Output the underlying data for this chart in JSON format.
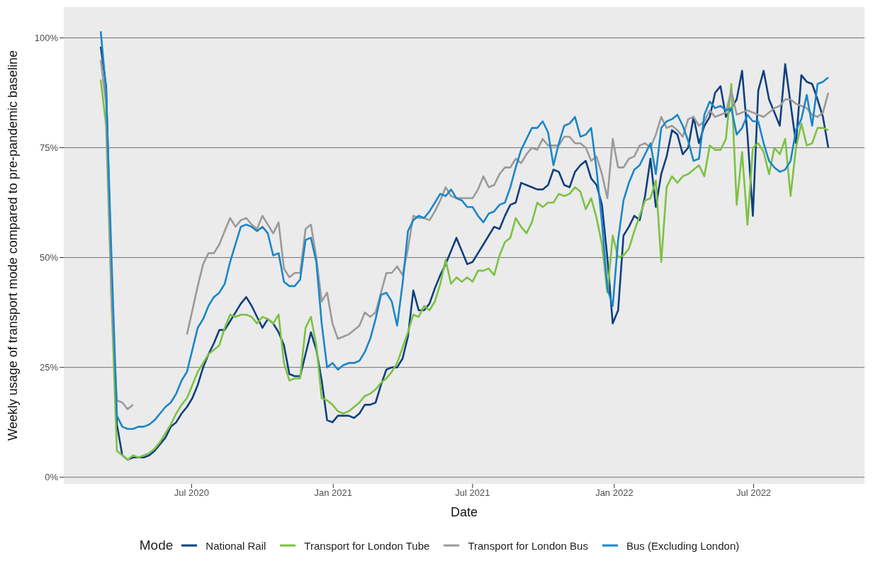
{
  "chart_data": {
    "type": "line",
    "xlabel": "Date",
    "ylabel": "Weekly usage of transport mode compared to pre-pandemic baseline",
    "legend_title": "Mode",
    "legend": "bottom",
    "grid": "y",
    "xlim": [
      "2020-01-17",
      "2022-11-22"
    ],
    "xticks": [
      {
        "value": "2020-07-01",
        "label": "Jul 2020"
      },
      {
        "value": "2021-01-01",
        "label": "Jan 2021"
      },
      {
        "value": "2021-07-01",
        "label": "Jul 2021"
      },
      {
        "value": "2022-01-01",
        "label": "Jan 2022"
      },
      {
        "value": "2022-07-01",
        "label": "Jul 2022"
      }
    ],
    "ylim": [
      -1.5,
      107
    ],
    "yticks": [
      {
        "value": 0,
        "label": "0%"
      },
      {
        "value": 25,
        "label": "25%"
      },
      {
        "value": 50,
        "label": "50%"
      },
      {
        "value": 75,
        "label": "75%"
      },
      {
        "value": 100,
        "label": "100%"
      }
    ],
    "x": [
      "2020-03-05",
      "2020-03-12",
      "2020-03-19",
      "2020-03-26",
      "2020-04-02",
      "2020-04-09",
      "2020-04-16",
      "2020-04-23",
      "2020-04-30",
      "2020-05-07",
      "2020-05-14",
      "2020-05-21",
      "2020-05-28",
      "2020-06-04",
      "2020-06-11",
      "2020-06-18",
      "2020-06-25",
      "2020-07-02",
      "2020-07-09",
      "2020-07-16",
      "2020-07-23",
      "2020-07-30",
      "2020-08-06",
      "2020-08-13",
      "2020-08-20",
      "2020-08-27",
      "2020-09-03",
      "2020-09-10",
      "2020-09-17",
      "2020-09-24",
      "2020-10-01",
      "2020-10-08",
      "2020-10-15",
      "2020-10-22",
      "2020-10-29",
      "2020-11-05",
      "2020-11-12",
      "2020-11-19",
      "2020-11-26",
      "2020-12-03",
      "2020-12-10",
      "2020-12-17",
      "2020-12-24",
      "2020-12-31",
      "2021-01-07",
      "2021-01-14",
      "2021-01-21",
      "2021-01-28",
      "2021-02-04",
      "2021-02-11",
      "2021-02-18",
      "2021-02-25",
      "2021-03-04",
      "2021-03-11",
      "2021-03-18",
      "2021-03-25",
      "2021-04-01",
      "2021-04-08",
      "2021-04-15",
      "2021-04-22",
      "2021-04-29",
      "2021-05-06",
      "2021-05-13",
      "2021-05-20",
      "2021-05-27",
      "2021-06-03",
      "2021-06-10",
      "2021-06-17",
      "2021-06-24",
      "2021-07-01",
      "2021-07-08",
      "2021-07-15",
      "2021-07-22",
      "2021-07-29",
      "2021-08-05",
      "2021-08-12",
      "2021-08-19",
      "2021-08-26",
      "2021-09-02",
      "2021-09-09",
      "2021-09-16",
      "2021-09-23",
      "2021-09-30",
      "2021-10-07",
      "2021-10-14",
      "2021-10-21",
      "2021-10-28",
      "2021-11-04",
      "2021-11-11",
      "2021-11-18",
      "2021-11-25",
      "2021-12-02",
      "2021-12-09",
      "2021-12-16",
      "2021-12-23",
      "2021-12-30",
      "2022-01-06",
      "2022-01-13",
      "2022-01-20",
      "2022-01-27",
      "2022-02-03",
      "2022-02-10",
      "2022-02-17",
      "2022-02-24",
      "2022-03-03",
      "2022-03-10",
      "2022-03-17",
      "2022-03-24",
      "2022-03-31",
      "2022-04-07",
      "2022-04-14",
      "2022-04-21",
      "2022-04-28",
      "2022-05-05",
      "2022-05-12",
      "2022-05-19",
      "2022-05-26",
      "2022-06-02",
      "2022-06-09",
      "2022-06-16",
      "2022-06-23",
      "2022-06-30",
      "2022-07-07",
      "2022-07-14",
      "2022-07-21",
      "2022-07-28",
      "2022-08-04",
      "2022-08-11",
      "2022-08-18",
      "2022-08-25",
      "2022-09-01",
      "2022-09-08",
      "2022-09-15",
      "2022-09-22",
      "2022-09-29",
      "2022-10-06"
    ],
    "series": [
      {
        "name": "National Rail",
        "color": "#0d3f7f",
        "values": [
          98,
          89,
          45,
          12,
          5,
          4,
          4.5,
          4.5,
          4.5,
          5,
          6,
          7.5,
          9,
          11.5,
          12.5,
          14.5,
          16,
          18,
          21,
          25,
          28,
          30.5,
          33.5,
          33.5,
          35.5,
          37.5,
          39.5,
          41,
          39,
          36.5,
          34,
          36,
          35,
          33,
          30,
          23.5,
          23,
          23,
          28,
          33,
          29,
          22,
          13,
          12.5,
          14,
          14,
          14,
          13.5,
          14.5,
          16.5,
          16.5,
          17,
          21,
          24.5,
          25,
          25,
          27,
          32,
          42.5,
          38,
          38,
          39.5,
          43,
          46,
          48.5,
          51.5,
          54.5,
          51.5,
          48.5,
          49,
          51,
          53,
          55,
          57,
          56.5,
          59.5,
          62,
          62.5,
          67,
          66.5,
          66,
          65.5,
          65.5,
          66.5,
          70,
          69.5,
          66.5,
          66,
          69.5,
          71,
          72,
          68,
          66.5,
          62,
          50,
          35,
          38,
          55,
          57,
          59.5,
          58.5,
          64,
          72.5,
          61.5,
          69,
          73,
          79,
          78,
          73.5,
          75,
          82,
          76,
          80,
          82,
          87.5,
          89,
          82,
          84,
          86,
          92.5,
          78,
          59.5,
          88,
          92.5,
          86,
          83,
          80,
          94,
          85,
          76,
          91.5,
          90,
          89.5,
          86,
          82,
          75
        ]
      },
      {
        "name": "Transport for London Tube",
        "color": "#7cc242",
        "values": [
          90.5,
          80,
          40,
          6,
          5,
          4,
          5,
          4.5,
          5,
          5.5,
          6.5,
          8,
          10,
          12,
          14.5,
          16.5,
          18,
          21,
          24,
          26,
          28,
          29,
          30,
          34,
          37,
          36.5,
          37,
          37,
          36.5,
          35,
          36.5,
          36,
          35,
          37,
          26,
          22,
          22.5,
          22.5,
          34,
          36.5,
          30,
          18,
          17.5,
          16.5,
          15,
          14.5,
          15,
          16,
          17,
          18.5,
          19,
          20,
          21.5,
          22.5,
          24,
          26,
          29.5,
          33,
          37,
          36.5,
          39,
          38,
          40,
          44,
          49.5,
          44,
          45.5,
          44.5,
          45.5,
          44.5,
          47,
          47,
          47.5,
          46,
          50.5,
          53.5,
          54.5,
          59,
          57,
          55.5,
          58,
          62.5,
          61.5,
          62.5,
          62.5,
          64.5,
          64,
          64.5,
          66,
          65,
          61,
          63.5,
          59,
          53,
          42,
          55,
          50,
          50.5,
          52,
          56,
          59.5,
          63,
          63.5,
          67.5,
          49,
          66,
          68.5,
          67,
          68.5,
          69,
          70,
          71,
          68.5,
          75.5,
          74.5,
          74.5,
          77,
          89.5,
          62,
          74,
          57.5,
          75,
          76,
          74,
          69,
          75,
          73.5,
          77,
          64,
          75,
          80.5,
          75.5,
          76,
          79.5,
          79.5,
          79
        ]
      },
      {
        "name": "Transport for London Bus",
        "color": "#9a9a9a",
        "values": [
          95,
          85,
          40,
          17.5,
          17,
          15.5,
          16.5,
          null,
          null,
          null,
          null,
          null,
          null,
          null,
          null,
          null,
          32.5,
          38,
          43.5,
          48.5,
          51,
          51,
          53,
          56,
          59,
          57,
          58.5,
          59,
          57.5,
          56.5,
          59.5,
          57.5,
          55.5,
          58,
          47.5,
          45.5,
          46.5,
          46.5,
          56.5,
          57.5,
          50,
          40,
          42,
          35,
          31.5,
          32,
          32.5,
          33.5,
          34.5,
          37.5,
          36.5,
          37.5,
          42,
          46.5,
          46.5,
          48,
          46,
          52,
          59.5,
          59,
          59,
          58.5,
          60.5,
          63,
          66,
          64,
          63.5,
          63.5,
          63.5,
          63.5,
          65.5,
          68.5,
          66,
          66.5,
          69,
          70.5,
          70.5,
          72.5,
          71.5,
          73.5,
          75,
          74.5,
          77,
          75.5,
          75.5,
          75.5,
          77.5,
          77.5,
          76,
          76,
          75,
          72,
          73,
          69,
          63.5,
          77,
          70.5,
          70.5,
          72.5,
          73,
          75.5,
          76,
          75,
          78,
          82,
          79.5,
          80,
          79,
          77.5,
          81.5,
          82,
          80,
          81,
          83.5,
          82,
          82.5,
          83,
          88,
          82.5,
          83,
          83.5,
          83,
          82.5,
          82,
          83,
          84,
          84.5,
          86,
          86,
          85,
          84.5,
          84,
          82.5,
          82,
          83,
          87.5
        ]
      },
      {
        "name": "Bus (Excluding London)",
        "color": "#1a86c8",
        "values": [
          101.5,
          88,
          50,
          14,
          11.5,
          11,
          11,
          11.5,
          11.5,
          12,
          13,
          14.5,
          16,
          17,
          19,
          22,
          24,
          29,
          34,
          36,
          39,
          41,
          42,
          44,
          49,
          53,
          57,
          57.5,
          57,
          56,
          57,
          55.5,
          50.5,
          51,
          44.5,
          43.5,
          43.5,
          45,
          54,
          54.5,
          49,
          35,
          25,
          26,
          24.5,
          25.5,
          26,
          26,
          26.5,
          28.5,
          31.5,
          36,
          41.5,
          42,
          40,
          34.5,
          44,
          56,
          58.5,
          59.5,
          59,
          60.5,
          62.5,
          64.5,
          64,
          65.5,
          63.5,
          63,
          61.5,
          61.5,
          59.5,
          58,
          60,
          60.5,
          62,
          62.5,
          66,
          70.5,
          74.5,
          77,
          79.5,
          79.5,
          81,
          78.5,
          71,
          76,
          80,
          80.5,
          82,
          77.5,
          78,
          79.5,
          70,
          58,
          43,
          39,
          54,
          63,
          67,
          70,
          71,
          73.5,
          76,
          69,
          79.5,
          81,
          81.5,
          82.5,
          80,
          76.5,
          72,
          72.5,
          82.5,
          85.5,
          84,
          84.5,
          83.5,
          84,
          78,
          79.5,
          82.5,
          81,
          81,
          76,
          72,
          70.5,
          69.5,
          70,
          72,
          79,
          81.5,
          87,
          80,
          89.5,
          90,
          91
        ]
      }
    ]
  }
}
